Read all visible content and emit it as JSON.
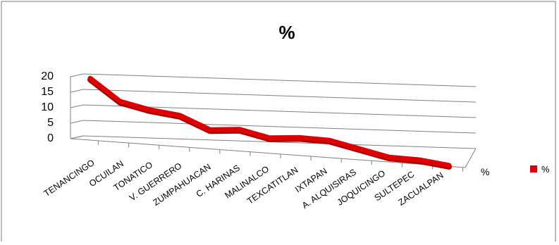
{
  "chart_data": {
    "type": "line",
    "title": "%",
    "categories": [
      "TENANCINGO",
      "OCUILAN",
      "TONATICO",
      "V. GUERRERO",
      "ZUMPAHUACAN",
      "C. HARINAS",
      "MALINALCO",
      "TEXCATITLAN",
      "IXTAPAN",
      "A. ALQUISIRAS",
      "JOQUICINGO",
      "SULTEPEC",
      "ZACUALPAN"
    ],
    "series": [
      {
        "name": "%",
        "values": [
          20,
          13,
          11,
          10,
          6,
          7,
          5,
          6,
          6,
          4,
          2,
          2,
          1
        ]
      }
    ],
    "y_ticks": [
      "0",
      "5",
      "10",
      "15",
      "20"
    ],
    "depth_axis_label": "%",
    "ylim": [
      0,
      20
    ],
    "grid": true,
    "legend_position": "right",
    "colors": {
      "series": "#dd0000",
      "grid": "#808080",
      "border": "#909090"
    }
  }
}
